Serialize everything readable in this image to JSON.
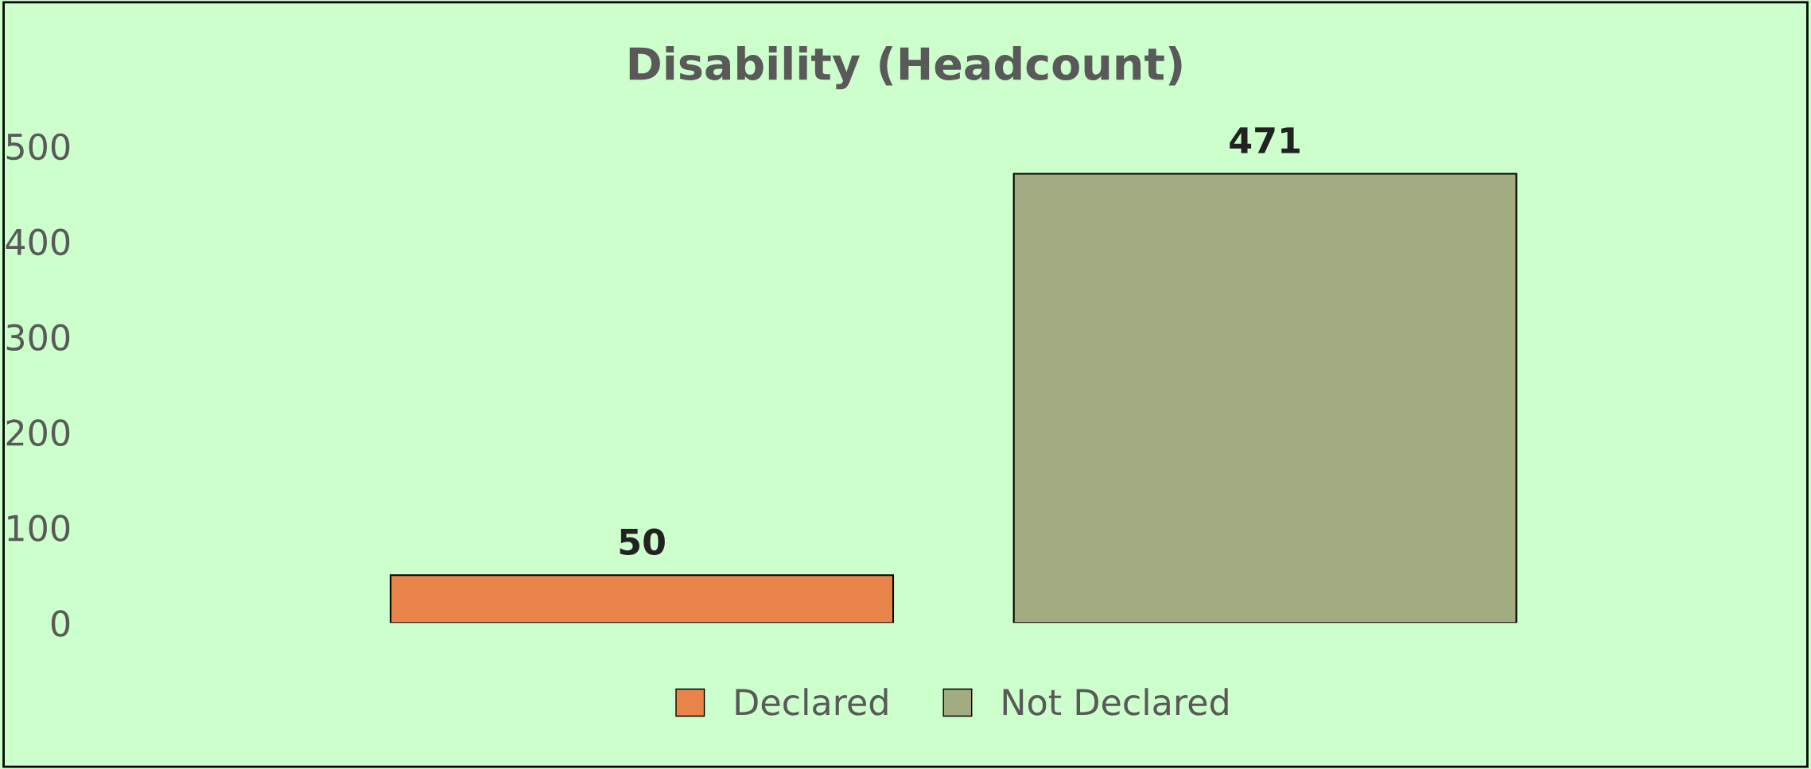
{
  "chart_data": {
    "type": "bar",
    "title": "Disability (Headcount)",
    "categories": [
      null
    ],
    "series": [
      {
        "name": "Declared",
        "color": "#e8834a",
        "values": [
          50
        ]
      },
      {
        "name": "Not Declared",
        "color": "#a3ab80",
        "values": [
          471
        ]
      }
    ],
    "ylim": [
      0,
      500
    ],
    "yticks": [
      0,
      100,
      200,
      300,
      400,
      500
    ],
    "data_labels": true,
    "legend": "bottom",
    "grid": false
  }
}
